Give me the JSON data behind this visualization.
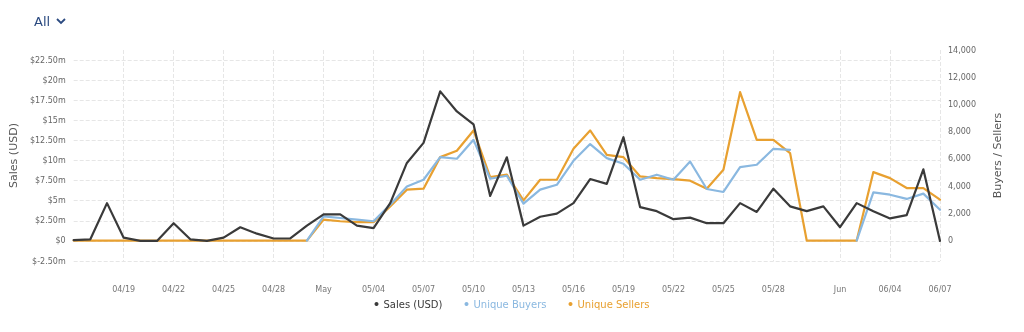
{
  "chart_data": {
    "type": "line",
    "annotations": [
      "All"
    ],
    "ylabel": "Sales (USD)",
    "y2label": "Buyers / Sellers",
    "categories": [
      null,
      null,
      null,
      "04/19",
      null,
      null,
      "04/22",
      null,
      null,
      "04/25",
      null,
      null,
      "04/28",
      null,
      null,
      "May",
      null,
      null,
      "05/04",
      null,
      null,
      "05/07",
      null,
      null,
      "05/10",
      null,
      null,
      "05/13",
      null,
      null,
      "05/16",
      null,
      null,
      "05/19",
      null,
      null,
      "05/22",
      null,
      null,
      "05/25",
      null,
      null,
      "05/28",
      null,
      null,
      null,
      "Jun",
      null,
      null,
      "06/04",
      null,
      null,
      "06/07"
    ],
    "series": [
      {
        "name": "Sales (USD)",
        "color": "#3a3a3a",
        "values": [
          0.1,
          0.2,
          4.7,
          0.4,
          0,
          0,
          2.2,
          0.2,
          0,
          0.4,
          1.7,
          0.9,
          0.3,
          0.3,
          1.9,
          3.3,
          3.3,
          1.9,
          1.6,
          4.7,
          9.7,
          12.2,
          18.6,
          16.1,
          14.5,
          5.6,
          10.4,
          1.9,
          3.0,
          3.4,
          4.7,
          7.7,
          7.1,
          12.9,
          4.2,
          3.7,
          2.7,
          2.9,
          2.2,
          2.2,
          4.7,
          3.6,
          6.5,
          4.3,
          3.7,
          4.3,
          1.7,
          4.7,
          3.7,
          2.8,
          3.2,
          8.9,
          0
        ]
      },
      {
        "name": "Unique Buyers",
        "color": "#8ab8e0",
        "axis": "y2",
        "values": [
          null,
          null,
          null,
          null,
          null,
          null,
          null,
          null,
          null,
          null,
          null,
          null,
          null,
          null,
          0,
          1780,
          1660,
          1540,
          1420,
          2640,
          3980,
          4470,
          6130,
          6010,
          7400,
          4540,
          4760,
          2710,
          3740,
          4100,
          5860,
          7090,
          6060,
          5640,
          4470,
          4840,
          4470,
          5810,
          3790,
          3570,
          5400,
          5570,
          6740,
          6670,
          null,
          null,
          null,
          0,
          3540,
          3370,
          3060,
          3450,
          2270
        ]
      },
      {
        "name": "Unique Sellers",
        "color": "#e8a030",
        "axis": "y2",
        "values": [
          0,
          0,
          0,
          0,
          0,
          0,
          0,
          0,
          0,
          0,
          0,
          0,
          0,
          0,
          0,
          1540,
          1420,
          1350,
          1350,
          2510,
          3740,
          3810,
          6130,
          6600,
          8090,
          4670,
          4840,
          2950,
          4470,
          4470,
          6740,
          8090,
          6300,
          6130,
          4710,
          4590,
          4520,
          4400,
          3810,
          5200,
          10900,
          7400,
          7400,
          6430,
          0,
          0,
          0,
          0,
          5030,
          4590,
          3860,
          3860,
          3010
        ]
      }
    ],
    "ylim": [
      -2.5,
      23.75
    ],
    "yticks": [
      {
        "value": -2.5,
        "label": "$-2.50m"
      },
      {
        "value": 0,
        "label": "$0"
      },
      {
        "value": 2.5,
        "label": "$2.50m"
      },
      {
        "value": 5,
        "label": "$5m"
      },
      {
        "value": 7.5,
        "label": "$7.50m"
      },
      {
        "value": 10,
        "label": "$10m"
      },
      {
        "value": 12.5,
        "label": "$12.50m"
      },
      {
        "value": 15,
        "label": "$15m"
      },
      {
        "value": 17.5,
        "label": "$17.50m"
      },
      {
        "value": 20,
        "label": "$20m"
      },
      {
        "value": 22.5,
        "label": "$22.50m"
      }
    ],
    "y2lim": [
      -1500,
      14000
    ],
    "y2ticks": [
      0,
      {
        "value": 2000,
        "label": "2,000"
      },
      {
        "value": 4000,
        "label": "4,000"
      },
      {
        "value": 6000,
        "label": "6,000"
      },
      {
        "value": 8000,
        "label": "8,000"
      },
      {
        "value": 10000,
        "label": "10,000"
      },
      {
        "value": 12000,
        "label": "12,000"
      },
      {
        "value": 14000,
        "label": "14,000"
      }
    ],
    "grid": true,
    "legend": "bottom",
    "marker": "none",
    "line_style": "solid"
  }
}
